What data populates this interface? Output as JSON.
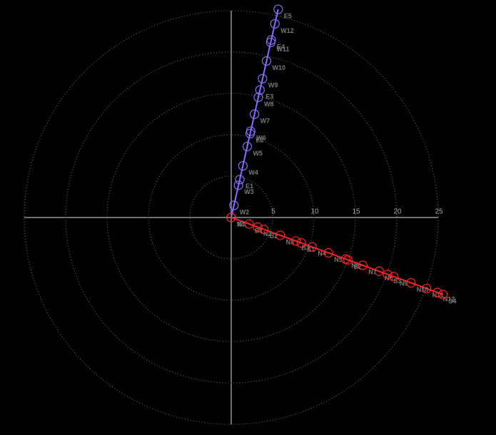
{
  "chart_data": {
    "type": "polar",
    "rlim": [
      0,
      25
    ],
    "rticks": [
      5,
      10,
      15,
      20,
      25
    ],
    "grid": true,
    "series": [
      {
        "color": "#8070ff",
        "angle": 77.3,
        "values": [
          0,
          1.5,
          4.0,
          4.7,
          6.4,
          8.8,
          10.4,
          10.7,
          12.8,
          14.9,
          15.8,
          17.2,
          19.4,
          21.7,
          22.0,
          24.0,
          25.8
        ],
        "labels": [
          "W1",
          "W2",
          "W3",
          "E1",
          "W4",
          "W5",
          "E2",
          "W6",
          "W7",
          "W8",
          "E3",
          "W9",
          "W10",
          "W11",
          "E4",
          "W12",
          "E5"
        ]
      },
      {
        "color": "#ff2020",
        "angle": -20,
        "values": [
          0,
          2.3,
          3.4,
          4.2,
          6.3,
          8.3,
          9.0,
          10.4,
          12.5,
          14.7,
          15.0,
          16.9,
          19.0,
          20.1,
          20.9,
          23.1,
          25.1,
          26.5,
          27.2
        ],
        "labels": [
          "N1",
          "B1",
          "N2",
          "B2",
          "N3",
          "B3",
          "S1",
          "N4",
          "N5",
          "N6",
          "S2",
          "N7",
          "N8",
          "S3",
          "N9",
          "N10",
          "N11",
          "N12",
          "S4"
        ]
      }
    ]
  }
}
